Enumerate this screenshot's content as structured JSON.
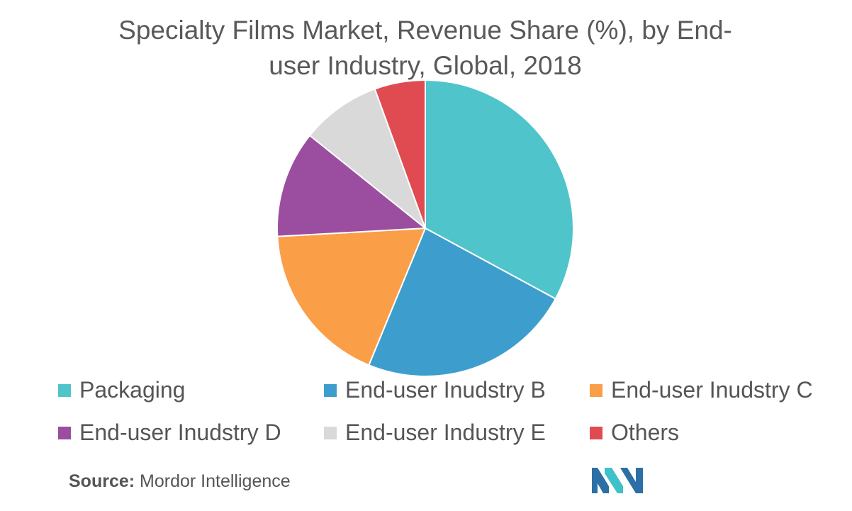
{
  "chart_data": {
    "type": "pie",
    "title_line1": "Specialty Films Market, Revenue Share (%), by End-",
    "title_line2": "user Industry, Global, 2018",
    "slices": [
      {
        "label": "Packaging",
        "value": 33.3,
        "color": "#4FC4CB"
      },
      {
        "label": "End-user Inudstry B",
        "value": 23.6,
        "color": "#3D9ECE"
      },
      {
        "label": "End-user Inudstry C",
        "value": 18.1,
        "color": "#FB9E48"
      },
      {
        "label": "End-user Inudstry D",
        "value": 11.8,
        "color": "#9B4EA0"
      },
      {
        "label": "End-user Industry E",
        "value": 8.8,
        "color": "#D9D9D9"
      },
      {
        "label": "Others",
        "value": 5.6,
        "color": "#E04B51"
      }
    ],
    "legend_position": "bottom"
  },
  "source": {
    "label": "Source:",
    "text": "Mordor Intelligence"
  },
  "logo": {
    "icon": "mordor-intelligence-logo",
    "colors": [
      "#2B6FA6",
      "#3FC1C9"
    ]
  }
}
